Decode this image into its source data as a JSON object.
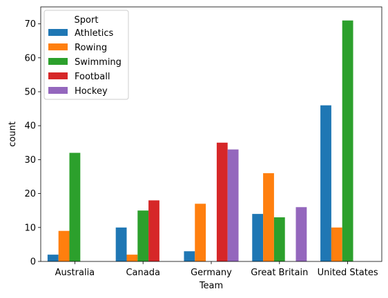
{
  "chart_data": {
    "type": "bar",
    "xlabel": "Team",
    "ylabel": "count",
    "ylim": [
      0,
      75
    ],
    "yticks": [
      0,
      10,
      20,
      30,
      40,
      50,
      60,
      70
    ],
    "categories": [
      "Australia",
      "Canada",
      "Germany",
      "Great Britain",
      "United States"
    ],
    "legend": {
      "title": "Sport",
      "placement": "top-left"
    },
    "series": [
      {
        "name": "Athletics",
        "color": "#1f77b4",
        "values": [
          2,
          10,
          3,
          14,
          46
        ]
      },
      {
        "name": "Rowing",
        "color": "#ff7f0e",
        "values": [
          9,
          2,
          17,
          26,
          10
        ]
      },
      {
        "name": "Swimming",
        "color": "#2ca02c",
        "values": [
          32,
          15,
          0,
          13,
          71
        ]
      },
      {
        "name": "Football",
        "color": "#d62728",
        "values": [
          0,
          18,
          35,
          0,
          0
        ]
      },
      {
        "name": "Hockey",
        "color": "#9467bd",
        "values": [
          0,
          0,
          33,
          16,
          0
        ]
      }
    ]
  }
}
